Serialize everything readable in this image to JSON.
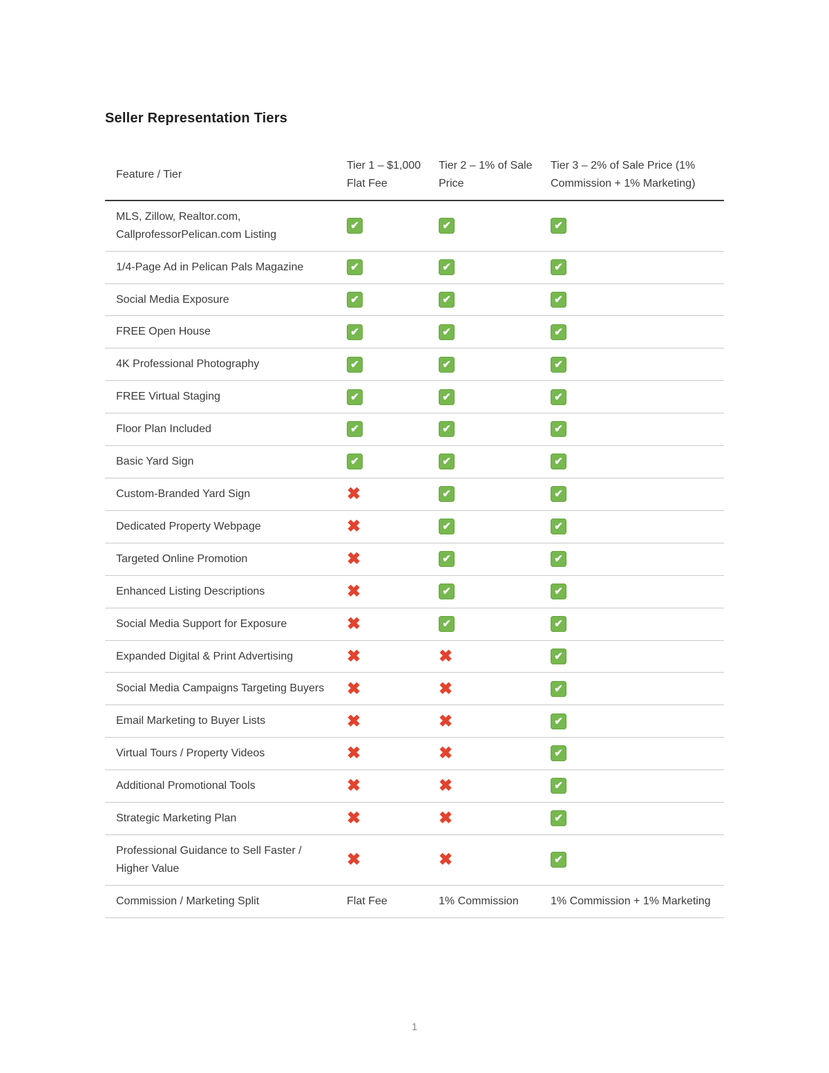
{
  "page": {
    "title": "Seller Representation Tiers",
    "page_number": "1"
  },
  "icons": {
    "check_glyph": "✔",
    "cross_glyph": "✖",
    "check_color": "#77b84f",
    "cross_color": "#e2432e"
  },
  "table": {
    "columns": [
      "Feature / Tier",
      "Tier 1 – $1,000 Flat Fee",
      "Tier 2 – 1% of Sale Price",
      "Tier 3 – 2% of Sale Price (1% Commission + 1% Marketing)"
    ],
    "rows": [
      {
        "feature": "MLS, Zillow, Realtor.com, CallprofessorPelican.com Listing",
        "tier1": "check",
        "tier2": "check",
        "tier3": "check"
      },
      {
        "feature": "1/4-Page Ad in Pelican Pals Magazine",
        "tier1": "check",
        "tier2": "check",
        "tier3": "check"
      },
      {
        "feature": "Social Media Exposure",
        "tier1": "check",
        "tier2": "check",
        "tier3": "check"
      },
      {
        "feature": "FREE Open House",
        "tier1": "check",
        "tier2": "check",
        "tier3": "check"
      },
      {
        "feature": "4K Professional Photography",
        "tier1": "check",
        "tier2": "check",
        "tier3": "check"
      },
      {
        "feature": "FREE Virtual Staging",
        "tier1": "check",
        "tier2": "check",
        "tier3": "check"
      },
      {
        "feature": "Floor Plan Included",
        "tier1": "check",
        "tier2": "check",
        "tier3": "check"
      },
      {
        "feature": "Basic Yard Sign",
        "tier1": "check",
        "tier2": "check",
        "tier3": "check"
      },
      {
        "feature": "Custom-Branded Yard Sign",
        "tier1": "cross",
        "tier2": "check",
        "tier3": "check"
      },
      {
        "feature": "Dedicated Property Webpage",
        "tier1": "cross",
        "tier2": "check",
        "tier3": "check"
      },
      {
        "feature": "Targeted Online Promotion",
        "tier1": "cross",
        "tier2": "check",
        "tier3": "check"
      },
      {
        "feature": "Enhanced Listing Descriptions",
        "tier1": "cross",
        "tier2": "check",
        "tier3": "check"
      },
      {
        "feature": "Social Media Support for Exposure",
        "tier1": "cross",
        "tier2": "check",
        "tier3": "check"
      },
      {
        "feature": "Expanded Digital & Print Advertising",
        "tier1": "cross",
        "tier2": "cross",
        "tier3": "check"
      },
      {
        "feature": "Social Media Campaigns Targeting Buyers",
        "tier1": "cross",
        "tier2": "cross",
        "tier3": "check"
      },
      {
        "feature": "Email Marketing to Buyer Lists",
        "tier1": "cross",
        "tier2": "cross",
        "tier3": "check"
      },
      {
        "feature": "Virtual Tours / Property Videos",
        "tier1": "cross",
        "tier2": "cross",
        "tier3": "check"
      },
      {
        "feature": "Additional Promotional Tools",
        "tier1": "cross",
        "tier2": "cross",
        "tier3": "check"
      },
      {
        "feature": "Strategic Marketing Plan",
        "tier1": "cross",
        "tier2": "cross",
        "tier3": "check"
      },
      {
        "feature": "Professional Guidance to Sell Faster / Higher Value",
        "tier1": "cross",
        "tier2": "cross",
        "tier3": "check"
      },
      {
        "feature": "Commission / Marketing Split",
        "tier1": "Flat Fee",
        "tier2": "1% Commission",
        "tier3": "1% Commission + 1% Marketing"
      }
    ]
  }
}
